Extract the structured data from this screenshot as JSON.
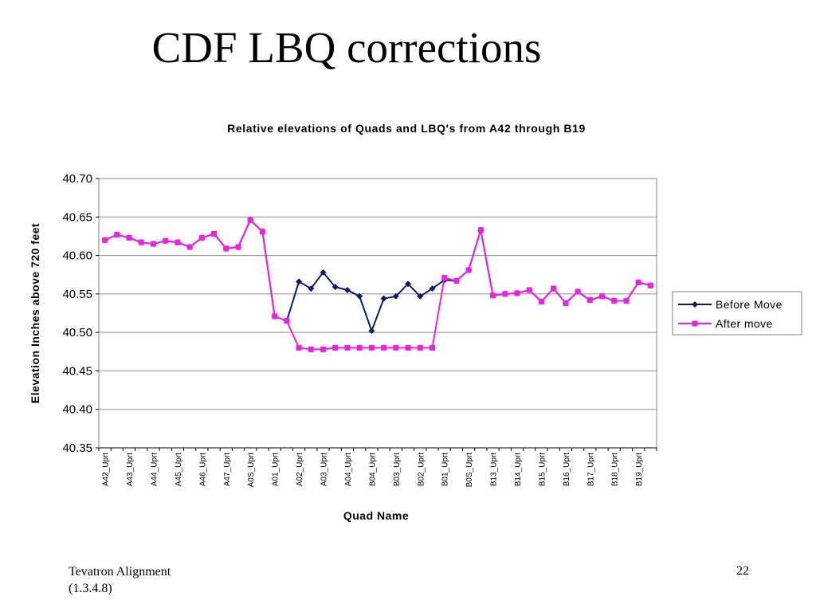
{
  "slide": {
    "title": "CDF LBQ corrections",
    "footer_line1": "Tevatron Alignment",
    "footer_line2": "(1.3.4.8)",
    "page_number": "22"
  },
  "chart_data": {
    "type": "line",
    "title": "Relative elevations of Quads and LBQ's from A42 through B19",
    "xlabel": "Quad Name",
    "ylabel": "Elevation Inches above 720 feet",
    "ylim": [
      40.35,
      40.7
    ],
    "yticks": [
      "40.70",
      "40.65",
      "40.60",
      "40.55",
      "40.50",
      "40.45",
      "40.40",
      "40.35"
    ],
    "tick_labels": [
      "A42_Uprt",
      "A43_Uprt",
      "A44_Uprt",
      "A45_Uprt",
      "A46_Uprt",
      "A47_Uprt",
      "A0S_Uprt",
      "A01_Uprt",
      "A02_Uprt",
      "A03_Uprt",
      "A04_Uprt",
      "B04_Uprt",
      "B03_Uprt",
      "B02_Uprt",
      "B01_Uprt",
      "B0S_Uprt",
      "B13_Uprt",
      "B14_Uprt",
      "B15_Uprt",
      "B16_Uprt",
      "B17_Uprt",
      "B18_Uprt",
      "B19_Uprt"
    ],
    "n_points": 46,
    "grid": "horizontal",
    "legend_position": "right",
    "colors": {
      "before": "#0d1a6e",
      "after": "#ee1fe6"
    },
    "series": [
      {
        "name": "Before Move",
        "values": [
          40.62,
          40.627,
          40.623,
          40.617,
          40.615,
          40.619,
          40.617,
          40.611,
          40.623,
          40.628,
          40.609,
          40.611,
          40.646,
          40.631,
          40.521,
          40.515,
          40.566,
          40.557,
          40.578,
          40.559,
          40.555,
          40.547,
          40.502,
          40.544,
          40.547,
          40.563,
          40.547,
          40.557,
          40.568,
          40.567,
          40.581,
          40.633,
          40.548,
          40.55,
          40.551,
          40.555,
          40.54,
          40.557,
          40.538,
          40.553,
          40.542,
          40.547,
          40.541,
          40.541,
          40.565,
          40.561
        ]
      },
      {
        "name": "After move",
        "values": [
          40.62,
          40.627,
          40.623,
          40.617,
          40.615,
          40.619,
          40.617,
          40.611,
          40.623,
          40.628,
          40.609,
          40.611,
          40.646,
          40.631,
          40.521,
          40.515,
          40.48,
          40.478,
          40.478,
          40.48,
          40.48,
          40.48,
          40.48,
          40.48,
          40.48,
          40.48,
          40.48,
          40.48,
          40.571,
          40.567,
          40.581,
          40.633,
          40.548,
          40.55,
          40.551,
          40.555,
          40.54,
          40.557,
          40.538,
          40.553,
          40.542,
          40.547,
          40.541,
          40.541,
          40.565,
          40.561
        ]
      }
    ]
  }
}
